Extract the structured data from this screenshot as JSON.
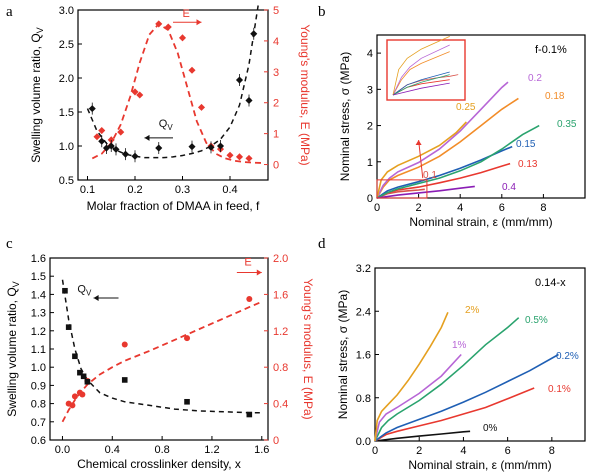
{
  "colors": {
    "black": "#111111",
    "red": "#e8382f"
  },
  "chart_data": [
    {
      "panel": "a",
      "type": "scatter",
      "xlabel": "Molar fraction of DMAA in feed, f",
      "ylabel_left": "Swelling volume ratio, Q",
      "ylabel_left_sub": "V",
      "ylabel_right": "Young's modulus, E (MPa)",
      "xlim": [
        0.08,
        0.48
      ],
      "xticks": [
        "0.1",
        "0.2",
        "0.3",
        "0.4"
      ],
      "ylim_left": [
        0.5,
        3.0
      ],
      "yticks_left": [
        "0.5",
        "1.0",
        "1.5",
        "2.0",
        "2.5",
        "3.0"
      ],
      "ylim_right": [
        -0.5,
        5.0
      ],
      "yticks_right": [
        "0",
        "1",
        "2",
        "3",
        "4",
        "5"
      ],
      "series_left": {
        "name": "Q_V",
        "legend": "Q",
        "legend_sub": "V",
        "x": [
          0.11,
          0.13,
          0.14,
          0.15,
          0.16,
          0.18,
          0.2,
          0.25,
          0.32,
          0.36,
          0.38,
          0.42,
          0.44,
          0.45
        ],
        "y": [
          1.55,
          1.07,
          0.97,
          1.0,
          0.95,
          0.88,
          0.85,
          0.97,
          0.99,
          0.98,
          1.0,
          1.97,
          1.67,
          2.65
        ],
        "fit_x": [
          0.1,
          0.12,
          0.14,
          0.16,
          0.18,
          0.2,
          0.22,
          0.24,
          0.26,
          0.28,
          0.3,
          0.32,
          0.34,
          0.36,
          0.38,
          0.4,
          0.42,
          0.44,
          0.46
        ],
        "fit_y": [
          1.55,
          1.22,
          1.04,
          0.94,
          0.88,
          0.85,
          0.83,
          0.83,
          0.83,
          0.84,
          0.86,
          0.89,
          0.93,
          1.0,
          1.1,
          1.28,
          1.6,
          2.2,
          3.1
        ]
      },
      "series_right": {
        "name": "E",
        "legend": "E",
        "x": [
          0.12,
          0.13,
          0.15,
          0.17,
          0.2,
          0.21,
          0.25,
          0.27,
          0.3,
          0.32,
          0.34,
          0.36,
          0.38,
          0.4,
          0.42,
          0.44
        ],
        "y": [
          0.9,
          1.1,
          0.8,
          1.05,
          2.35,
          2.25,
          4.55,
          4.45,
          4.1,
          3.05,
          1.85,
          0.6,
          0.5,
          0.3,
          0.25,
          0.2
        ],
        "fit_x": [
          0.11,
          0.13,
          0.15,
          0.17,
          0.19,
          0.21,
          0.23,
          0.25,
          0.27,
          0.29,
          0.31,
          0.33,
          0.35,
          0.37,
          0.39,
          0.41,
          0.43,
          0.45,
          0.47
        ],
        "fit_y": [
          0.2,
          0.35,
          0.7,
          1.3,
          2.2,
          3.3,
          4.2,
          4.55,
          4.35,
          3.6,
          2.5,
          1.4,
          0.7,
          0.35,
          0.2,
          0.12,
          0.08,
          0.06,
          0.05
        ]
      }
    },
    {
      "panel": "b",
      "type": "line",
      "title": "f-0.1%",
      "xlabel": "Nominal strain, ε (mm/mm)",
      "ylabel": "Nominal stress, σ (MPa)",
      "xlim": [
        0,
        10
      ],
      "xticks": [
        "0",
        "2",
        "4",
        "6",
        "8"
      ],
      "ylim": [
        0,
        4.5
      ],
      "yticks": [
        "0",
        "1",
        "2",
        "3",
        "4"
      ],
      "series": [
        {
          "name": "0.1",
          "color": "#d9534a",
          "x": [
            0,
            0.5,
            1,
            1.5,
            2,
            2.3
          ],
          "y": [
            0,
            0.12,
            0.17,
            0.2,
            0.22,
            0.24
          ]
        },
        {
          "name": "0.13",
          "color": "#e8382f",
          "x": [
            0,
            0.5,
            1,
            2,
            3,
            4,
            5,
            6,
            6.4
          ],
          "y": [
            0,
            0.15,
            0.22,
            0.3,
            0.42,
            0.55,
            0.7,
            0.88,
            0.95
          ]
        },
        {
          "name": "0.15",
          "color": "#1f5fb4",
          "x": [
            0,
            0.5,
            1,
            2,
            3,
            4,
            5,
            6,
            6.5
          ],
          "y": [
            0,
            0.2,
            0.3,
            0.45,
            0.62,
            0.82,
            1.05,
            1.3,
            1.42
          ]
        },
        {
          "name": "0.18",
          "color": "#f28c28",
          "x": [
            0,
            0.3,
            0.6,
            1,
            2,
            3,
            4,
            5,
            6,
            6.8
          ],
          "y": [
            0,
            0.3,
            0.5,
            0.62,
            0.85,
            1.15,
            1.55,
            2.0,
            2.45,
            2.75
          ]
        },
        {
          "name": "0.2",
          "color": "#b766d6",
          "x": [
            0,
            0.3,
            0.6,
            1,
            2,
            3,
            4,
            5,
            6,
            6.3
          ],
          "y": [
            0,
            0.35,
            0.55,
            0.72,
            0.98,
            1.35,
            1.85,
            2.45,
            3.05,
            3.2
          ]
        },
        {
          "name": "0.25",
          "color": "#e5a020",
          "x": [
            0,
            0.2,
            0.5,
            1,
            2,
            3,
            3.8,
            4.3
          ],
          "y": [
            0,
            0.5,
            0.72,
            0.9,
            1.15,
            1.45,
            1.8,
            2.1
          ]
        },
        {
          "name": "0.35",
          "color": "#2aa36e",
          "x": [
            0,
            0.5,
            1,
            2,
            3,
            4,
            5,
            6,
            7,
            7.8
          ],
          "y": [
            0,
            0.15,
            0.25,
            0.4,
            0.55,
            0.75,
            1.0,
            1.35,
            1.75,
            2.0
          ]
        },
        {
          "name": "0.4",
          "color": "#8a1db5",
          "x": [
            0,
            1,
            2,
            3,
            4,
            4.7
          ],
          "y": [
            0,
            0.08,
            0.14,
            0.2,
            0.27,
            0.32
          ]
        }
      ],
      "labels": [
        "0.25",
        "0.2",
        "0.18",
        "0.35",
        "0.15",
        "0.13",
        "0.1",
        "0.4"
      ],
      "inset": "zoom"
    },
    {
      "panel": "c",
      "type": "scatter",
      "xlabel": "Chemical crosslinker density, x",
      "ylabel_left": "Swelling volume ratio, Q",
      "ylabel_left_sub": "V",
      "ylabel_right": "Young's modulus, E (MPa)",
      "xlim": [
        -0.1,
        1.65
      ],
      "xticks": [
        "0.0",
        "0.4",
        "0.8",
        "1.2",
        "1.6"
      ],
      "ylim_left": [
        0.6,
        1.6
      ],
      "yticks_left": [
        "0.6",
        "0.7",
        "0.8",
        "0.9",
        "1.0",
        "1.1",
        "1.2",
        "1.3",
        "1.4",
        "1.5",
        "1.6"
      ],
      "ylim_right": [
        0,
        2.0
      ],
      "yticks_right": [
        "0",
        "0.4",
        "0.8",
        "1.2",
        "1.6",
        "2.0"
      ],
      "series_left": {
        "name": "Q_V",
        "legend": "Q",
        "legend_sub": "V",
        "x": [
          0.02,
          0.05,
          0.1,
          0.14,
          0.17,
          0.2,
          0.5,
          1.0,
          1.5
        ],
        "y": [
          1.42,
          1.22,
          1.06,
          0.97,
          0.95,
          0.92,
          0.93,
          0.81,
          0.74
        ],
        "fit_x": [
          0,
          0.05,
          0.1,
          0.15,
          0.2,
          0.3,
          0.4,
          0.5,
          0.7,
          0.9,
          1.1,
          1.3,
          1.5,
          1.6
        ],
        "fit_y": [
          1.48,
          1.26,
          1.1,
          0.99,
          0.93,
          0.86,
          0.83,
          0.81,
          0.79,
          0.77,
          0.76,
          0.755,
          0.75,
          0.75
        ]
      },
      "series_right": {
        "name": "E",
        "legend": "E",
        "x": [
          0.05,
          0.08,
          0.1,
          0.14,
          0.16,
          0.2,
          0.5,
          1.0,
          1.5
        ],
        "y": [
          0.4,
          0.38,
          0.48,
          0.52,
          0.5,
          0.65,
          1.05,
          1.12,
          1.55
        ],
        "fit_x": [
          0,
          0.05,
          0.1,
          0.15,
          0.2,
          0.3,
          0.4,
          0.5,
          0.7,
          0.9,
          1.1,
          1.3,
          1.5,
          1.6
        ],
        "fit_y": [
          0.2,
          0.33,
          0.44,
          0.53,
          0.61,
          0.72,
          0.8,
          0.87,
          0.98,
          1.1,
          1.22,
          1.34,
          1.46,
          1.52
        ]
      }
    },
    {
      "panel": "d",
      "type": "line",
      "title": "0.14-x",
      "xlabel": "Nominal strain, ε (mm/mm)",
      "ylabel": "Nominal stress, σ (MPa)",
      "xlim": [
        0,
        9.5
      ],
      "xticks": [
        "0",
        "2",
        "4",
        "6",
        "8"
      ],
      "ylim": [
        0,
        3.2
      ],
      "yticks": [
        "0.0",
        "0.8",
        "1.6",
        "2.4",
        "3.2"
      ],
      "series": [
        {
          "name": "0%",
          "color": "#111111",
          "x": [
            0,
            1,
            2,
            3,
            4,
            4.3
          ],
          "y": [
            0,
            0.05,
            0.09,
            0.13,
            0.17,
            0.18
          ]
        },
        {
          "name": "0.1%",
          "color": "#e8382f",
          "x": [
            0,
            0.5,
            1,
            2,
            3,
            4,
            5,
            6,
            7.2
          ],
          "y": [
            0,
            0.12,
            0.18,
            0.28,
            0.38,
            0.5,
            0.62,
            0.78,
            0.98
          ]
        },
        {
          "name": "0.2%",
          "color": "#1f5fb4",
          "x": [
            0,
            0.5,
            1,
            2,
            3,
            4,
            5,
            6,
            7,
            8.3
          ],
          "y": [
            0,
            0.15,
            0.25,
            0.4,
            0.55,
            0.72,
            0.9,
            1.1,
            1.3,
            1.6
          ]
        },
        {
          "name": "0.5%",
          "color": "#2aa36e",
          "x": [
            0,
            0.3,
            0.6,
            1,
            2,
            3,
            4,
            5,
            6,
            6.5
          ],
          "y": [
            0,
            0.25,
            0.38,
            0.5,
            0.75,
            1.05,
            1.4,
            1.78,
            2.1,
            2.28
          ]
        },
        {
          "name": "1%",
          "color": "#b766d6",
          "x": [
            0,
            0.2,
            0.5,
            1,
            2,
            3,
            3.9
          ],
          "y": [
            0,
            0.35,
            0.5,
            0.62,
            0.88,
            1.2,
            1.6
          ]
        },
        {
          "name": "2%",
          "color": "#e5a020",
          "x": [
            0,
            0.1,
            0.3,
            0.6,
            1,
            1.5,
            2,
            2.5,
            3,
            3.3
          ],
          "y": [
            0,
            0.38,
            0.55,
            0.68,
            0.85,
            1.12,
            1.42,
            1.75,
            2.1,
            2.38
          ]
        }
      ],
      "labels": [
        "2%",
        "0.5%",
        "1%",
        "0.2%",
        "0.1%",
        "0%"
      ]
    }
  ],
  "panel_letters": [
    "a",
    "b",
    "c",
    "d"
  ]
}
